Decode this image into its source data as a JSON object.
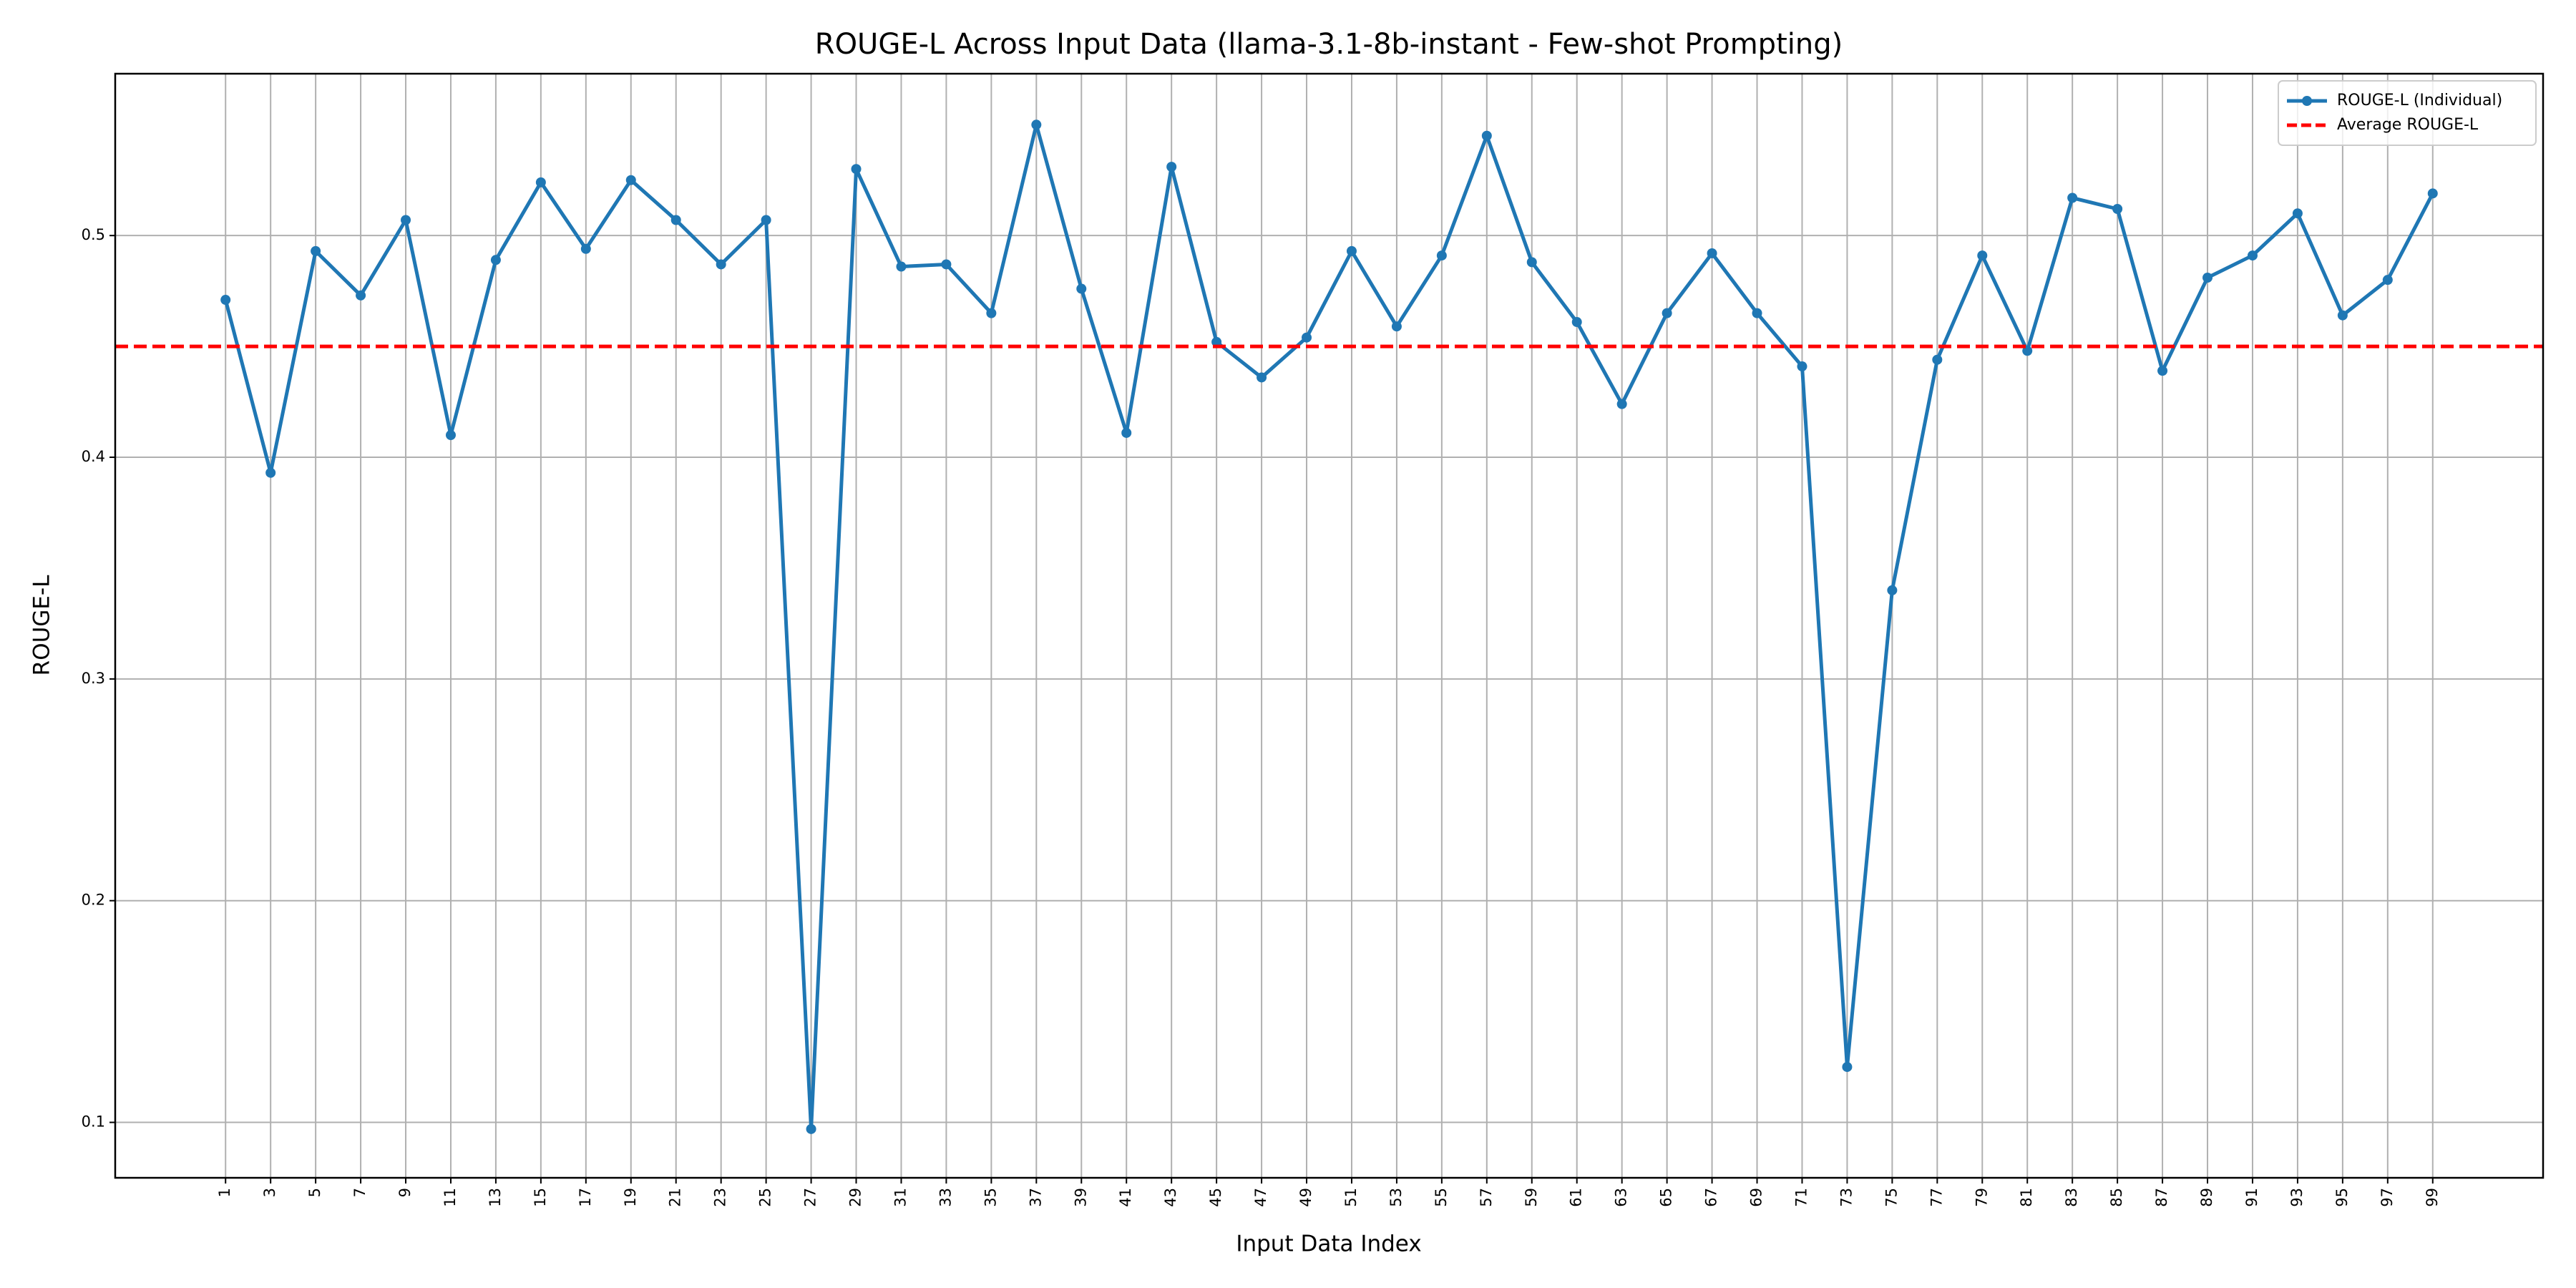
{
  "chart_data": {
    "type": "line",
    "title": "ROUGE-L Across Input Data (llama-3.1-8b-instant - Few-shot Prompting)",
    "x_label": "Input Data Index",
    "y_label": "ROUGE-L",
    "x": [
      1,
      3,
      5,
      7,
      9,
      11,
      13,
      15,
      17,
      19,
      21,
      23,
      25,
      27,
      29,
      31,
      33,
      35,
      37,
      39,
      41,
      43,
      45,
      47,
      49,
      51,
      53,
      55,
      57,
      59,
      61,
      63,
      65,
      67,
      69,
      71,
      73,
      75,
      77,
      79,
      81,
      83,
      85,
      87,
      89,
      91,
      93,
      95,
      97,
      99
    ],
    "series": [
      {
        "name": "ROUGE-L (Individual)",
        "color": "#1f77b4",
        "values": [
          0.471,
          0.393,
          0.493,
          0.473,
          0.507,
          0.41,
          0.489,
          0.524,
          0.494,
          0.525,
          0.507,
          0.487,
          0.507,
          0.097,
          0.53,
          0.486,
          0.487,
          0.465,
          0.55,
          0.476,
          0.411,
          0.531,
          0.452,
          0.436,
          0.454,
          0.493,
          0.459,
          0.491,
          0.545,
          0.488,
          0.461,
          0.424,
          0.465,
          0.492,
          0.465,
          0.441,
          0.125,
          0.34,
          0.444,
          0.491,
          0.448,
          0.517,
          0.512,
          0.439,
          0.481,
          0.491,
          0.51,
          0.464,
          0.48,
          0.519
        ]
      }
    ],
    "average": {
      "name": "Average ROUGE-L",
      "color": "#ff0000",
      "value": 0.45
    },
    "xlim": [
      -3.9,
      103.9
    ],
    "ylim": [
      0.075,
      0.573
    ],
    "xticks": [
      1,
      3,
      5,
      7,
      9,
      11,
      13,
      15,
      17,
      19,
      21,
      23,
      25,
      27,
      29,
      31,
      33,
      35,
      37,
      39,
      41,
      43,
      45,
      47,
      49,
      51,
      53,
      55,
      57,
      59,
      61,
      63,
      65,
      67,
      69,
      71,
      73,
      75,
      77,
      79,
      81,
      83,
      85,
      87,
      89,
      91,
      93,
      95,
      97,
      99
    ],
    "yticks": [
      0.1,
      0.2,
      0.3,
      0.4,
      0.5
    ],
    "grid": true,
    "legend": "upper right"
  }
}
